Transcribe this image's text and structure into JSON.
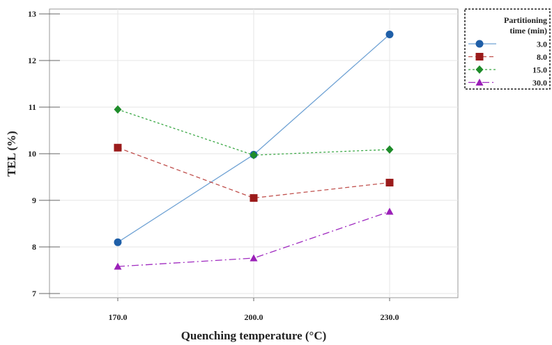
{
  "chart_data": {
    "type": "line",
    "title": "",
    "xlabel": "Quenching temperature (°C)",
    "ylabel": "TEL (%)",
    "categories": [
      "170.0",
      "200.0",
      "230.0"
    ],
    "ylim": [
      7,
      13
    ],
    "yticks": [
      7,
      8,
      9,
      10,
      11,
      12,
      13
    ],
    "grid": true,
    "legend": {
      "title_lines": [
        "Partitioning",
        "time (min)"
      ],
      "placement": "top-right-outside"
    },
    "series": [
      {
        "name": "3.0",
        "values": [
          8.1,
          9.98,
          12.56
        ],
        "color": "#1f5fa8",
        "line_color": "#6fa2d4",
        "marker": "circle",
        "dash": ""
      },
      {
        "name": "8.0",
        "values": [
          10.13,
          9.05,
          9.38
        ],
        "color": "#9b1b1b",
        "line_color": "#c0504d",
        "marker": "square",
        "dash": "6,4"
      },
      {
        "name": "15.0",
        "values": [
          10.95,
          9.97,
          10.09
        ],
        "color": "#1e8c2a",
        "line_color": "#3aa845",
        "marker": "diamond",
        "dash": "3,3"
      },
      {
        "name": "30.0",
        "values": [
          7.58,
          7.76,
          8.76
        ],
        "color": "#9b20b8",
        "line_color": "#a02bc0",
        "marker": "triangle",
        "dash": "10,4,2,4"
      }
    ]
  }
}
